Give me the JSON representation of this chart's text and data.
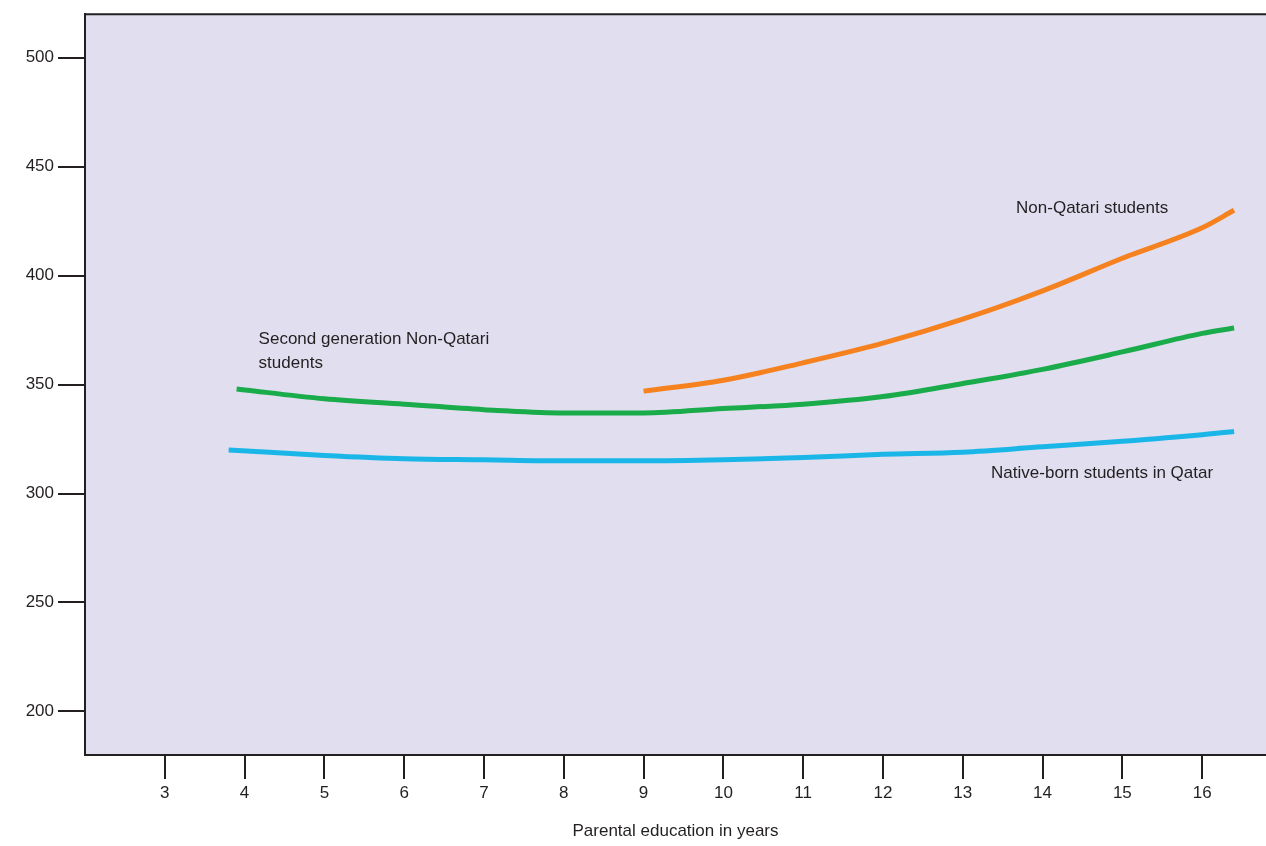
{
  "chart_data": {
    "type": "line",
    "xlabel": "Parental education in years",
    "xlim": [
      2,
      16.8
    ],
    "xticks": [
      3,
      4,
      5,
      6,
      7,
      8,
      9,
      10,
      11,
      12,
      13,
      14,
      15,
      16
    ],
    "ylim": [
      180,
      520
    ],
    "yticks": [
      200,
      250,
      300,
      350,
      400,
      450,
      500
    ],
    "grid": false,
    "legend": false,
    "series": [
      {
        "name": "Non-Qatari students",
        "color": "#f5821f",
        "x": [
          9,
          10,
          11,
          12,
          13,
          14,
          15,
          16,
          16.4
        ],
        "values": [
          347,
          352,
          360,
          369,
          380,
          393,
          408,
          422,
          430
        ]
      },
      {
        "name": "Second generation Non-Qatari students",
        "color": "#1aab4b",
        "x": [
          3.9,
          5,
          6,
          7,
          8,
          9,
          10,
          11,
          12,
          13,
          14,
          15,
          16,
          16.4
        ],
        "values": [
          348,
          343.5,
          341,
          338.5,
          337,
          337,
          339,
          341,
          344.5,
          350.5,
          357,
          365,
          373.5,
          376
        ]
      },
      {
        "name": "Native-born students in Qatar",
        "color": "#1bb6e8",
        "x": [
          3.8,
          5,
          6,
          7,
          8,
          9,
          10,
          11,
          12,
          13,
          14,
          15,
          16,
          16.4
        ],
        "values": [
          320,
          317.5,
          316,
          315.5,
          315,
          315,
          315.5,
          316.5,
          318,
          319,
          321.5,
          324,
          327,
          328.5
        ]
      }
    ]
  }
}
